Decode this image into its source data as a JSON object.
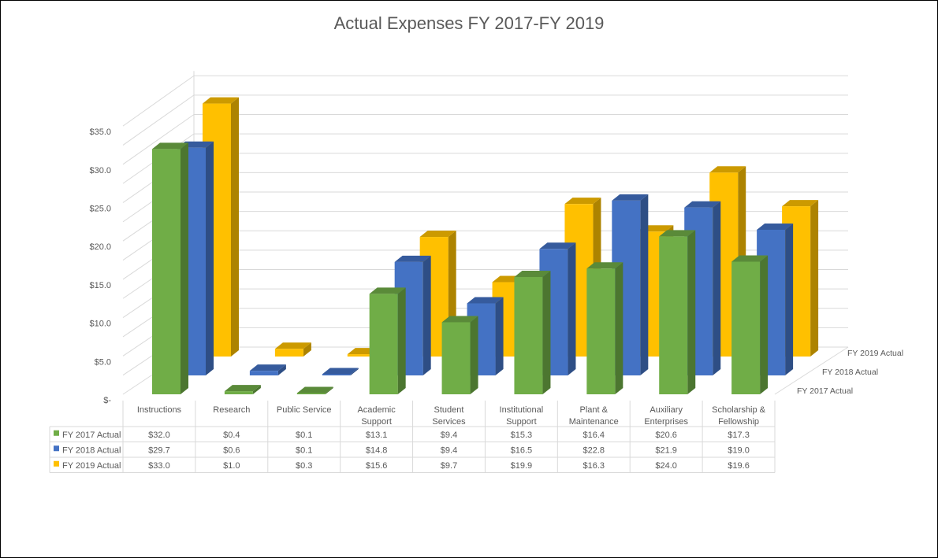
{
  "chart_data": {
    "type": "bar",
    "variant": "3d-column-with-data-table",
    "title": "Actual Expenses FY 2017-FY 2019",
    "categories": [
      "Instructions",
      "Research",
      "Public Service",
      "Academic Support",
      "Student Services",
      "Institutional Support",
      "Plant & Maintenance",
      "Auxiliary Enterprises",
      "Scholarship & Fellowship"
    ],
    "category_label_lines": [
      [
        "Instructions"
      ],
      [
        "Research"
      ],
      [
        "Public Service"
      ],
      [
        "Academic",
        "Support"
      ],
      [
        "Student",
        "Services"
      ],
      [
        "Institutional",
        "Support"
      ],
      [
        "Plant &",
        "Maintenance"
      ],
      [
        "Auxiliary",
        "Enterprises"
      ],
      [
        "Scholarship &",
        "Fellowship"
      ]
    ],
    "series": [
      {
        "name": "FY 2017 Actual",
        "color": "#70AD47",
        "values": [
          32.0,
          0.4,
          0.1,
          13.1,
          9.4,
          15.3,
          16.4,
          20.6,
          17.3
        ],
        "labels": [
          "$32.0",
          "$0.4",
          "$0.1",
          "$13.1",
          "$9.4",
          "$15.3",
          "$16.4",
          "$20.6",
          "$17.3"
        ]
      },
      {
        "name": "FY 2018 Actual",
        "color": "#4472C4",
        "values": [
          29.7,
          0.6,
          0.1,
          14.8,
          9.4,
          16.5,
          22.8,
          21.9,
          19.0
        ],
        "labels": [
          "$29.7",
          "$0.6",
          "$0.1",
          "$14.8",
          "$9.4",
          "$16.5",
          "$22.8",
          "$21.9",
          "$19.0"
        ]
      },
      {
        "name": "FY 2019 Actual",
        "color": "#FFC000",
        "values": [
          33.0,
          1.0,
          0.3,
          15.6,
          9.7,
          19.9,
          16.3,
          24.0,
          19.6
        ],
        "labels": [
          "$33.0",
          "$1.0",
          "$0.3",
          "$15.6",
          "$9.7",
          "$19.9",
          "$16.3",
          "$24.0",
          "$19.6"
        ]
      }
    ],
    "y_ticks": [
      "$-",
      "$5.0",
      "$10.0",
      "$15.0",
      "$20.0",
      "$25.0",
      "$30.0",
      "$35.0"
    ],
    "y_tick_values": [
      0,
      5,
      10,
      15,
      20,
      25,
      30,
      35
    ],
    "ylim": [
      0,
      35
    ],
    "grid": true,
    "legend": "data-table"
  }
}
